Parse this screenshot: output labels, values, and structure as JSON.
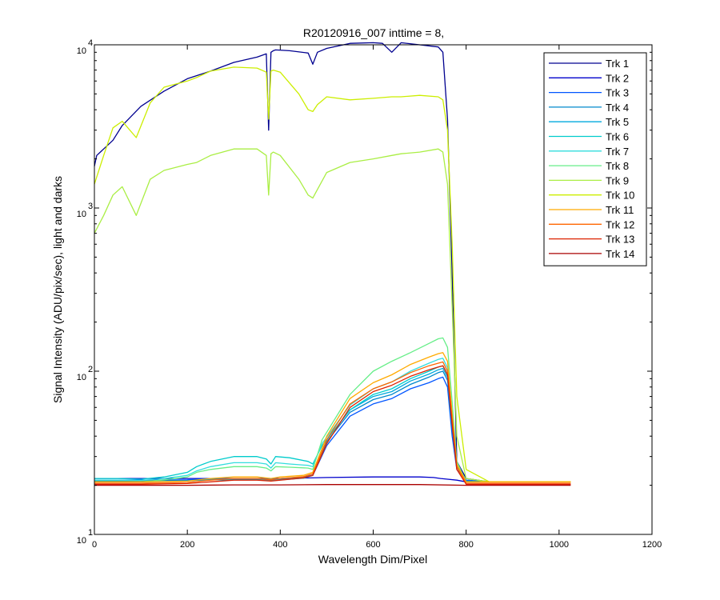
{
  "chart_data": {
    "type": "line",
    "title": "R20120916_007 inttime = 8,",
    "xlabel": "Wavelength Dim/Pixel",
    "ylabel": "Signal Intensity (ADU/pix/sec), light and darks",
    "xlim": [
      0,
      1200
    ],
    "ylim": [
      10,
      10000
    ],
    "yscale": "log",
    "x_ticks": [
      0,
      200,
      400,
      600,
      800,
      1000,
      1200
    ],
    "x_tick_labels": [
      "0",
      "200",
      "400",
      "600",
      "800",
      "1000",
      "1200"
    ],
    "y_ticks": [
      10,
      100,
      1000,
      10000
    ],
    "y_tick_labels": [
      {
        "base": "10",
        "exp": "1"
      },
      {
        "base": "10",
        "exp": "2"
      },
      {
        "base": "10",
        "exp": "3"
      },
      {
        "base": "10",
        "exp": "4"
      }
    ],
    "legend_position": "top-right",
    "grid": false,
    "series": [
      {
        "name": "Trk 1",
        "color": "#00008f",
        "x": [
          0,
          5,
          20,
          40,
          60,
          100,
          150,
          200,
          250,
          300,
          350,
          370,
          375,
          380,
          385,
          390,
          420,
          460,
          470,
          480,
          500,
          550,
          600,
          620,
          640,
          660,
          700,
          740,
          750,
          760,
          770,
          780,
          800,
          850,
          900,
          1000,
          1025
        ],
        "y": [
          1800,
          2100,
          2300,
          2600,
          3200,
          4200,
          5200,
          6200,
          6900,
          7800,
          8400,
          8800,
          3000,
          9000,
          9200,
          9300,
          9200,
          8900,
          7600,
          9000,
          9500,
          10200,
          10300,
          10200,
          9000,
          10300,
          10000,
          9700,
          9000,
          3500,
          400,
          28,
          22,
          21,
          21,
          21,
          21
        ]
      },
      {
        "name": "Trk 2",
        "color": "#0000cc",
        "x": [
          0,
          100,
          200,
          300,
          400,
          500,
          600,
          700,
          730,
          745,
          760,
          780,
          800,
          900,
          1025
        ],
        "y": [
          22,
          22,
          22,
          22,
          22,
          22.3,
          22.5,
          22.5,
          22.3,
          22,
          21.8,
          21.5,
          21,
          21,
          21
        ]
      },
      {
        "name": "Trk 3",
        "color": "#0055ff",
        "x": [
          0,
          100,
          200,
          250,
          300,
          350,
          380,
          400,
          450,
          470,
          500,
          550,
          600,
          640,
          680,
          720,
          740,
          750,
          760,
          770,
          780,
          800,
          850,
          900,
          1025
        ],
        "y": [
          21.5,
          21.5,
          21.6,
          22,
          22,
          22,
          21.8,
          22,
          22.5,
          23,
          35,
          53,
          63,
          68,
          78,
          85,
          90,
          92,
          80,
          40,
          25,
          21.5,
          21,
          21,
          21
        ]
      },
      {
        "name": "Trk 4",
        "color": "#0088cc",
        "x": [
          0,
          100,
          200,
          250,
          300,
          350,
          380,
          400,
          450,
          470,
          500,
          550,
          600,
          640,
          680,
          720,
          740,
          750,
          760,
          770,
          780,
          800,
          850,
          900,
          1025
        ],
        "y": [
          21.3,
          21.3,
          21.4,
          21.8,
          21.8,
          21.8,
          21.6,
          21.8,
          22.3,
          23,
          37,
          56,
          67,
          72,
          83,
          92,
          98,
          100,
          88,
          45,
          26,
          21.3,
          21,
          21,
          21
        ]
      },
      {
        "name": "Trk 5",
        "color": "#00aadd",
        "x": [
          0,
          100,
          200,
          250,
          300,
          350,
          380,
          400,
          450,
          470,
          500,
          550,
          600,
          640,
          680,
          720,
          740,
          750,
          760,
          770,
          780,
          800,
          850,
          900,
          1025
        ],
        "y": [
          21,
          21,
          21.3,
          21.6,
          21.6,
          21.6,
          21.4,
          21.6,
          22.1,
          23,
          38,
          58,
          70,
          75,
          87,
          96,
          102,
          104,
          92,
          46,
          26,
          21,
          21,
          21,
          21
        ]
      },
      {
        "name": "Trk 6",
        "color": "#00cccc",
        "x": [
          0,
          50,
          100,
          150,
          200,
          220,
          250,
          300,
          350,
          370,
          380,
          390,
          420,
          460,
          470,
          490,
          550,
          600,
          640,
          680,
          720,
          740,
          750,
          760,
          770,
          780,
          800,
          850,
          900,
          1025
        ],
        "y": [
          22,
          22,
          21.8,
          22.5,
          24,
          26,
          28,
          30,
          30,
          29,
          27,
          30,
          29.5,
          28,
          27,
          35,
          58,
          72,
          78,
          90,
          100,
          106,
          108,
          96,
          48,
          26,
          21,
          21,
          21,
          21
        ]
      },
      {
        "name": "Trk 7",
        "color": "#33dddd",
        "x": [
          0,
          50,
          100,
          150,
          200,
          220,
          250,
          300,
          350,
          370,
          380,
          390,
          420,
          460,
          470,
          490,
          550,
          600,
          640,
          680,
          720,
          740,
          750,
          760,
          770,
          780,
          800,
          850,
          900,
          1025
        ],
        "y": [
          21.5,
          21.5,
          21.4,
          22,
          23,
          24.5,
          26,
          27.5,
          27.5,
          27,
          25.5,
          27.5,
          27,
          26.5,
          26,
          36,
          62,
          78,
          86,
          100,
          112,
          118,
          120,
          105,
          52,
          27,
          21,
          21,
          21,
          21
        ]
      },
      {
        "name": "Trk 8",
        "color": "#66ee88",
        "x": [
          0,
          50,
          100,
          150,
          200,
          220,
          250,
          300,
          350,
          370,
          380,
          390,
          420,
          460,
          470,
          490,
          550,
          600,
          640,
          680,
          720,
          740,
          750,
          760,
          770,
          780,
          800,
          850,
          900,
          1025
        ],
        "y": [
          21,
          21,
          21,
          21.6,
          22.5,
          24,
          25,
          26,
          26,
          25.5,
          24.5,
          26,
          25.8,
          25.5,
          25,
          38,
          72,
          100,
          115,
          130,
          148,
          158,
          160,
          140,
          65,
          28,
          21,
          21,
          21,
          21
        ]
      },
      {
        "name": "Trk 9",
        "color": "#aaee44",
        "x": [
          0,
          20,
          40,
          60,
          90,
          120,
          150,
          200,
          220,
          250,
          300,
          350,
          370,
          375,
          380,
          385,
          400,
          440,
          460,
          470,
          480,
          500,
          550,
          600,
          640,
          660,
          700,
          740,
          750,
          760,
          770,
          780,
          800,
          850,
          900,
          1025
        ],
        "y": [
          700,
          900,
          1200,
          1350,
          900,
          1500,
          1700,
          1850,
          1900,
          2100,
          2300,
          2300,
          2100,
          1200,
          2150,
          2200,
          2100,
          1500,
          1200,
          1150,
          1300,
          1650,
          1900,
          2000,
          2100,
          2150,
          2200,
          2300,
          2200,
          1400,
          250,
          40,
          22,
          21,
          21,
          21
        ]
      },
      {
        "name": "Trk 10",
        "color": "#ccee00",
        "x": [
          0,
          20,
          40,
          60,
          90,
          120,
          150,
          200,
          220,
          250,
          300,
          350,
          370,
          375,
          380,
          385,
          400,
          440,
          460,
          470,
          480,
          500,
          550,
          600,
          640,
          660,
          700,
          740,
          750,
          760,
          770,
          780,
          800,
          850,
          900,
          1025
        ],
        "y": [
          1400,
          2100,
          3100,
          3400,
          2700,
          4400,
          5500,
          6000,
          6300,
          6900,
          7300,
          7200,
          6800,
          3500,
          6900,
          7000,
          6800,
          5000,
          4000,
          3900,
          4300,
          4800,
          4600,
          4700,
          4800,
          4800,
          4900,
          4800,
          4600,
          3000,
          600,
          70,
          25,
          21,
          21,
          21
        ]
      },
      {
        "name": "Trk 11",
        "color": "#ffaa00",
        "x": [
          0,
          100,
          200,
          250,
          300,
          350,
          380,
          400,
          450,
          470,
          500,
          550,
          600,
          640,
          680,
          720,
          740,
          750,
          760,
          770,
          780,
          800,
          850,
          900,
          1025
        ],
        "y": [
          21,
          21,
          21.2,
          22,
          22.5,
          22.5,
          22,
          22.5,
          23,
          24,
          40,
          68,
          85,
          95,
          110,
          122,
          128,
          130,
          115,
          55,
          27,
          21,
          21,
          21,
          21
        ]
      },
      {
        "name": "Trk 12",
        "color": "#ff6600",
        "x": [
          0,
          100,
          200,
          250,
          300,
          350,
          380,
          400,
          450,
          470,
          500,
          550,
          600,
          640,
          680,
          720,
          740,
          750,
          760,
          770,
          780,
          800,
          850,
          900,
          1025
        ],
        "y": [
          20.6,
          20.6,
          20.8,
          21.5,
          22,
          22,
          21.6,
          22,
          22.6,
          23.5,
          38,
          63,
          78,
          86,
          98,
          108,
          112,
          114,
          100,
          50,
          26,
          20.6,
          20.6,
          20.6,
          20.6
        ]
      },
      {
        "name": "Trk 13",
        "color": "#dd2200",
        "x": [
          0,
          100,
          200,
          250,
          300,
          350,
          380,
          400,
          450,
          470,
          500,
          550,
          600,
          640,
          680,
          720,
          740,
          750,
          760,
          770,
          780,
          800,
          850,
          900,
          1025
        ],
        "y": [
          20.3,
          20.3,
          20.5,
          21,
          21.5,
          21.5,
          21.2,
          21.5,
          22.2,
          23,
          36,
          60,
          75,
          82,
          93,
          102,
          106,
          108,
          95,
          47,
          25,
          20.3,
          20.3,
          20.3,
          20.3
        ]
      },
      {
        "name": "Trk 14",
        "color": "#aa0000",
        "x": [
          0,
          100,
          200,
          300,
          400,
          500,
          600,
          700,
          800,
          900,
          1025
        ],
        "y": [
          20,
          20,
          20,
          20.1,
          20.1,
          20.2,
          20.2,
          20.2,
          20,
          20,
          20
        ]
      }
    ]
  }
}
